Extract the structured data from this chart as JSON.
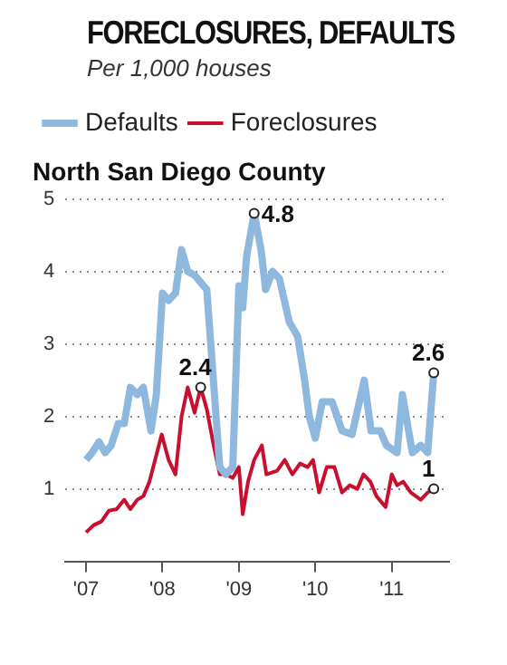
{
  "chart_data": {
    "type": "line",
    "title": "FORECLOSURES, DEFAULTS",
    "subtitle": "Per 1,000 houses",
    "annotations": [
      "North San Diego County",
      {
        "text": "4.8",
        "x": 2009.2,
        "y": 4.8
      },
      {
        "text": "2.4",
        "x": 2008.5,
        "y": 2.4
      },
      {
        "text": "2.6",
        "x": 2011.55,
        "y": 2.6
      },
      {
        "text": "1",
        "x": 2011.55,
        "y": 1
      }
    ],
    "series": [
      {
        "name": "Defaults",
        "color": "#8fb8de",
        "x": [
          2007.0,
          2007.08,
          2007.17,
          2007.25,
          2007.33,
          2007.42,
          2007.5,
          2007.58,
          2007.67,
          2007.75,
          2007.85,
          2007.92,
          2008.0,
          2008.08,
          2008.17,
          2008.25,
          2008.33,
          2008.42,
          2008.5,
          2008.58,
          2008.75,
          2008.83,
          2008.92,
          2009.0,
          2009.05,
          2009.1,
          2009.2,
          2009.29,
          2009.35,
          2009.44,
          2009.53,
          2009.66,
          2009.77,
          2009.86,
          2009.92,
          2010.0,
          2010.09,
          2010.22,
          2010.35,
          2010.48,
          2010.64,
          2010.73,
          2010.85,
          2010.93,
          2011.07,
          2011.14,
          2011.27,
          2011.38,
          2011.47,
          2011.55
        ],
        "values": [
          1.4,
          1.5,
          1.65,
          1.5,
          1.6,
          1.9,
          1.9,
          2.4,
          2.3,
          2.4,
          1.8,
          2.3,
          3.7,
          3.6,
          3.7,
          4.3,
          4.0,
          3.95,
          3.85,
          3.75,
          1.3,
          1.2,
          1.3,
          3.8,
          3.5,
          4.2,
          4.8,
          4.3,
          3.75,
          4.0,
          3.9,
          3.3,
          3.1,
          2.5,
          2.0,
          1.7,
          2.2,
          2.2,
          1.8,
          1.75,
          2.5,
          1.8,
          1.8,
          1.6,
          1.5,
          2.3,
          1.5,
          1.6,
          1.5,
          2.6
        ]
      },
      {
        "name": "Foreclosures",
        "color": "#c8102e",
        "x": [
          2007.0,
          2007.1,
          2007.2,
          2007.3,
          2007.4,
          2007.5,
          2007.58,
          2007.67,
          2007.75,
          2007.83,
          2007.99,
          2008.08,
          2008.17,
          2008.25,
          2008.33,
          2008.42,
          2008.5,
          2008.58,
          2008.67,
          2008.75,
          2008.83,
          2008.92,
          2009.0,
          2009.05,
          2009.12,
          2009.2,
          2009.3,
          2009.36,
          2009.5,
          2009.6,
          2009.7,
          2009.8,
          2009.9,
          2009.97,
          2010.05,
          2010.15,
          2010.25,
          2010.35,
          2010.45,
          2010.55,
          2010.63,
          2010.72,
          2010.8,
          2010.92,
          2011.0,
          2011.07,
          2011.15,
          2011.25,
          2011.38,
          2011.47,
          2011.55
        ],
        "values": [
          0.4,
          0.5,
          0.55,
          0.7,
          0.72,
          0.85,
          0.72,
          0.85,
          0.9,
          1.1,
          1.75,
          1.4,
          1.2,
          2.0,
          2.4,
          2.05,
          2.4,
          2.1,
          1.6,
          1.2,
          1.2,
          1.15,
          1.3,
          0.65,
          1.1,
          1.4,
          1.6,
          1.2,
          1.25,
          1.4,
          1.2,
          1.35,
          1.3,
          1.4,
          0.95,
          1.3,
          1.3,
          0.95,
          1.05,
          1.0,
          1.2,
          1.1,
          0.9,
          0.75,
          1.2,
          1.05,
          1.1,
          0.95,
          0.85,
          0.95,
          1.0
        ]
      }
    ],
    "xlim": [
      2006.73,
      2011.75
    ],
    "xticks": [
      {
        "value": 2007,
        "label": "'07"
      },
      {
        "value": 2008,
        "label": "'08"
      },
      {
        "value": 2009,
        "label": "'09"
      },
      {
        "value": 2010,
        "label": "'10"
      },
      {
        "value": 2011,
        "label": "'11"
      }
    ],
    "ylim": [
      0,
      5
    ],
    "yticks": [
      1,
      2,
      3,
      4,
      5
    ],
    "grid": "y",
    "legend": "top left",
    "marker": "none",
    "line_style": "solid"
  }
}
